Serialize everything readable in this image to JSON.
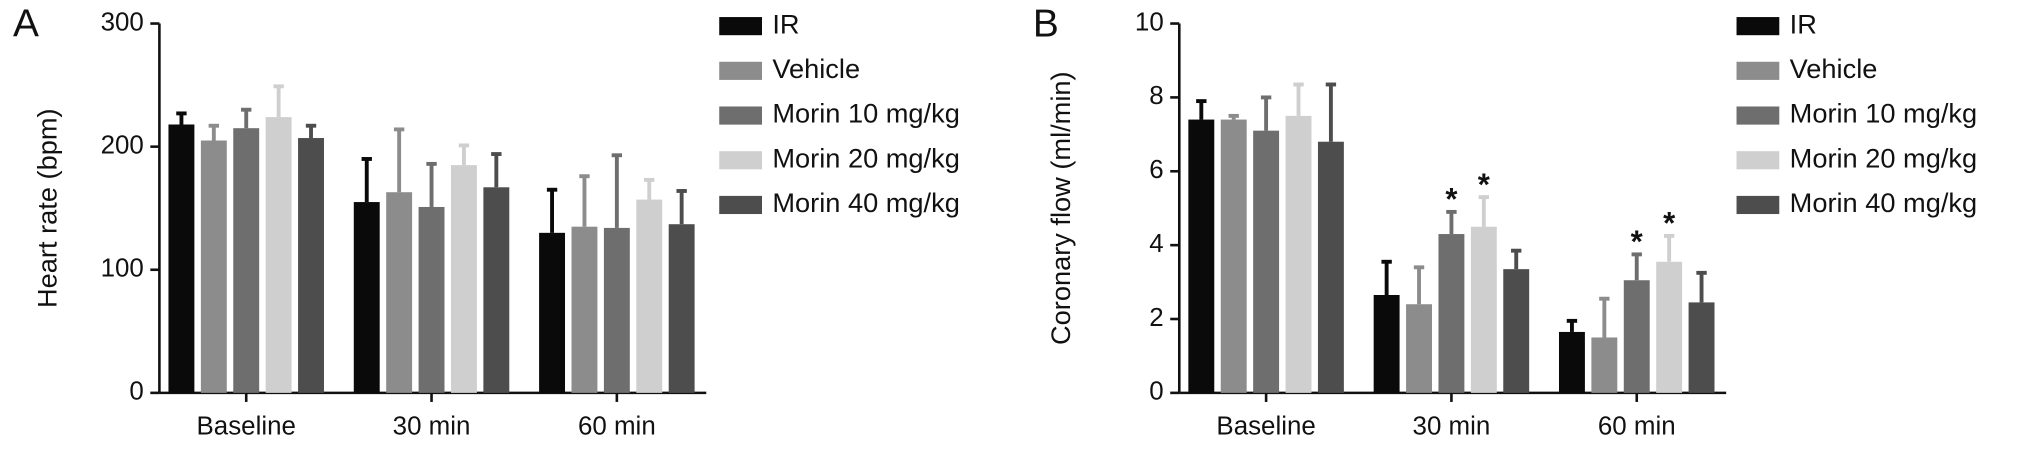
{
  "chart_data": [
    {
      "type": "bar",
      "panel": "A",
      "ylabel": "Heart rate (bpm)",
      "categories": [
        "Baseline",
        "30 min",
        "60 min"
      ],
      "ylim": [
        0,
        300
      ],
      "yticks": [
        0,
        100,
        200,
        300
      ],
      "series": [
        {
          "name": "IR",
          "color": "#0a0a0a",
          "values": [
            218,
            155,
            130
          ],
          "errors": [
            9,
            35,
            35
          ],
          "annotations": [
            null,
            null,
            null
          ]
        },
        {
          "name": "Vehicle",
          "color": "#8c8c8c",
          "values": [
            205,
            163,
            135
          ],
          "errors": [
            12,
            51,
            41
          ],
          "annotations": [
            null,
            null,
            null
          ]
        },
        {
          "name": "Morin 10 mg/kg",
          "color": "#6e6e6e",
          "values": [
            215,
            151,
            134
          ],
          "errors": [
            15,
            35,
            59
          ],
          "annotations": [
            null,
            null,
            null
          ]
        },
        {
          "name": "Morin 20 mg/kg",
          "color": "#cfcfcf",
          "values": [
            224,
            185,
            157
          ],
          "errors": [
            25,
            16,
            16
          ],
          "annotations": [
            null,
            null,
            null
          ]
        },
        {
          "name": "Morin 40 mg/kg",
          "color": "#4d4d4d",
          "values": [
            207,
            167,
            137
          ],
          "errors": [
            10,
            27,
            27
          ],
          "annotations": [
            null,
            null,
            null
          ]
        }
      ]
    },
    {
      "type": "bar",
      "panel": "B",
      "ylabel": "Coronary flow (ml/min)",
      "categories": [
        "Baseline",
        "30 min",
        "60 min"
      ],
      "ylim": [
        0,
        10
      ],
      "yticks": [
        0,
        2,
        4,
        6,
        8,
        10
      ],
      "series": [
        {
          "name": "IR",
          "color": "#0a0a0a",
          "values": [
            7.4,
            2.65,
            1.65
          ],
          "errors": [
            0.5,
            0.9,
            0.3
          ],
          "annotations": [
            null,
            null,
            null
          ]
        },
        {
          "name": "Vehicle",
          "color": "#8c8c8c",
          "values": [
            7.4,
            2.4,
            1.5
          ],
          "errors": [
            0.1,
            1.0,
            1.05
          ],
          "annotations": [
            null,
            null,
            null
          ]
        },
        {
          "name": "Morin 10 mg/kg",
          "color": "#6e6e6e",
          "values": [
            7.1,
            4.3,
            3.05
          ],
          "errors": [
            0.9,
            0.6,
            0.7
          ],
          "annotations": [
            null,
            "*",
            "*"
          ]
        },
        {
          "name": "Morin 20 mg/kg",
          "color": "#cfcfcf",
          "values": [
            7.5,
            4.5,
            3.55
          ],
          "errors": [
            0.85,
            0.8,
            0.7
          ],
          "annotations": [
            null,
            "*",
            "*"
          ]
        },
        {
          "name": "Morin 40 mg/kg",
          "color": "#4d4d4d",
          "values": [
            6.8,
            3.35,
            2.45
          ],
          "errors": [
            1.55,
            0.5,
            0.8
          ],
          "annotations": [
            null,
            null,
            null
          ]
        }
      ]
    }
  ]
}
